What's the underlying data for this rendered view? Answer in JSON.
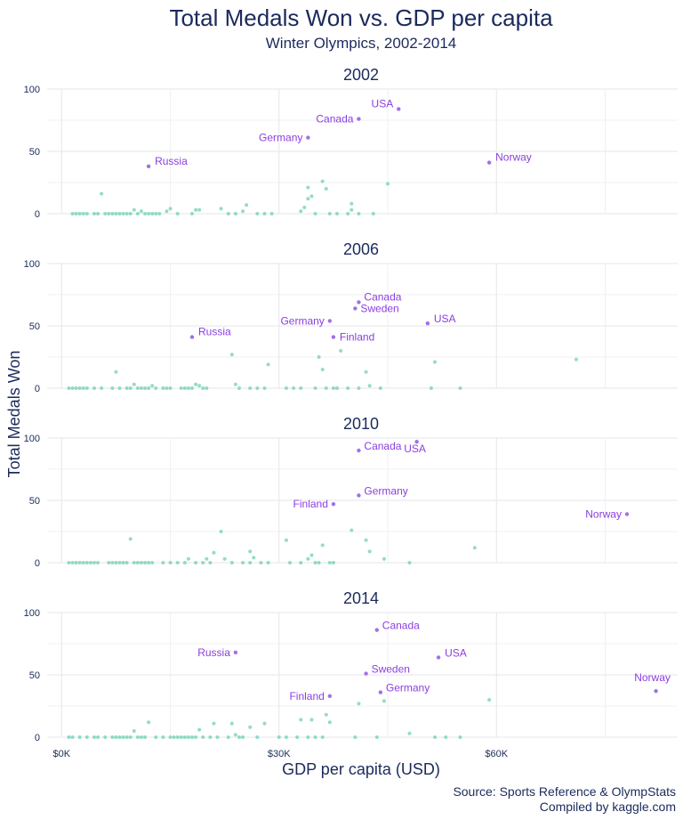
{
  "colors": {
    "title": "#1b2a5c",
    "text": "#1b2a5c",
    "label": "#8a3ee0",
    "highlight_point": "#a070e8",
    "point": "#6fd0b4",
    "grid": "#e6e6ec"
  },
  "chart_data": {
    "type": "scatter",
    "title": "Total Medals Won vs. GDP per capita",
    "subtitle": "Winter Olympics, 2002-2014",
    "xlabel": "GDP per capita (USD)",
    "ylabel": "Total Medals Won",
    "xlim": [
      -2000,
      85000
    ],
    "ylim": [
      0,
      100
    ],
    "x_ticks": [
      0,
      30000,
      60000
    ],
    "x_tick_labels": [
      "$0K",
      "$30K",
      "$60K"
    ],
    "y_ticks": [
      0,
      50,
      100
    ],
    "y_tick_labels": [
      "0",
      "50",
      "100"
    ],
    "grid": true,
    "caption_lines": [
      "Source: Sports Reference & OlympStats",
      "Compiled by kaggle.com"
    ],
    "facets": [
      {
        "label": "2002",
        "highlights": [
          {
            "country": "Russia",
            "x": 12000,
            "y": 38
          },
          {
            "country": "Germany",
            "x": 34000,
            "y": 61
          },
          {
            "country": "Canada",
            "x": 41000,
            "y": 76
          },
          {
            "country": "USA",
            "x": 46500,
            "y": 84
          },
          {
            "country": "Norway",
            "x": 59000,
            "y": 41
          }
        ],
        "points": [
          [
            1500,
            0
          ],
          [
            2000,
            0
          ],
          [
            2500,
            0
          ],
          [
            3000,
            0
          ],
          [
            3500,
            0
          ],
          [
            4500,
            0
          ],
          [
            5000,
            0
          ],
          [
            5500,
            16
          ],
          [
            6000,
            0
          ],
          [
            6500,
            0
          ],
          [
            7000,
            0
          ],
          [
            7500,
            0
          ],
          [
            8000,
            0
          ],
          [
            8500,
            0
          ],
          [
            9000,
            0
          ],
          [
            9500,
            0
          ],
          [
            10000,
            3
          ],
          [
            10500,
            0
          ],
          [
            11000,
            2
          ],
          [
            11500,
            0
          ],
          [
            12000,
            0
          ],
          [
            12500,
            0
          ],
          [
            13000,
            0
          ],
          [
            13500,
            0
          ],
          [
            14500,
            2
          ],
          [
            15000,
            4
          ],
          [
            16000,
            0
          ],
          [
            18000,
            0
          ],
          [
            18500,
            3
          ],
          [
            19000,
            3
          ],
          [
            22000,
            4
          ],
          [
            23000,
            0
          ],
          [
            24000,
            0
          ],
          [
            25000,
            2
          ],
          [
            25500,
            7
          ],
          [
            27000,
            0
          ],
          [
            28000,
            0
          ],
          [
            29000,
            0
          ],
          [
            33000,
            2
          ],
          [
            33500,
            5
          ],
          [
            34000,
            21
          ],
          [
            34000,
            12
          ],
          [
            34500,
            14
          ],
          [
            35000,
            0
          ],
          [
            36000,
            26
          ],
          [
            36500,
            20
          ],
          [
            37000,
            0
          ],
          [
            38000,
            0
          ],
          [
            39500,
            0
          ],
          [
            40000,
            8
          ],
          [
            40000,
            3
          ],
          [
            41000,
            0
          ],
          [
            43000,
            0
          ],
          [
            45000,
            24
          ]
        ]
      },
      {
        "label": "2006",
        "highlights": [
          {
            "country": "Russia",
            "x": 18000,
            "y": 41
          },
          {
            "country": "Germany",
            "x": 37000,
            "y": 54
          },
          {
            "country": "Finland",
            "x": 37500,
            "y": 41
          },
          {
            "country": "Canada",
            "x": 41000,
            "y": 69
          },
          {
            "country": "Sweden",
            "x": 40500,
            "y": 64
          },
          {
            "country": "USA",
            "x": 50500,
            "y": 52
          }
        ],
        "points": [
          [
            1000,
            0
          ],
          [
            1500,
            0
          ],
          [
            2000,
            0
          ],
          [
            2500,
            0
          ],
          [
            3000,
            0
          ],
          [
            3500,
            0
          ],
          [
            4500,
            0
          ],
          [
            5500,
            0
          ],
          [
            7000,
            0
          ],
          [
            7500,
            13
          ],
          [
            8000,
            0
          ],
          [
            9000,
            0
          ],
          [
            9500,
            0
          ],
          [
            10000,
            3
          ],
          [
            10500,
            0
          ],
          [
            11000,
            0
          ],
          [
            11500,
            0
          ],
          [
            12000,
            0
          ],
          [
            12500,
            2
          ],
          [
            13000,
            0
          ],
          [
            14000,
            0
          ],
          [
            14500,
            0
          ],
          [
            15000,
            0
          ],
          [
            16500,
            0
          ],
          [
            17000,
            0
          ],
          [
            17500,
            0
          ],
          [
            18000,
            0
          ],
          [
            18500,
            3
          ],
          [
            19000,
            2
          ],
          [
            19500,
            0
          ],
          [
            20000,
            0
          ],
          [
            23500,
            27
          ],
          [
            24000,
            3
          ],
          [
            24500,
            0
          ],
          [
            26000,
            0
          ],
          [
            27000,
            0
          ],
          [
            28000,
            0
          ],
          [
            28500,
            19
          ],
          [
            31000,
            0
          ],
          [
            32000,
            0
          ],
          [
            33000,
            0
          ],
          [
            35000,
            0
          ],
          [
            35500,
            25
          ],
          [
            36000,
            15
          ],
          [
            36500,
            0
          ],
          [
            37500,
            0
          ],
          [
            38000,
            0
          ],
          [
            38500,
            30
          ],
          [
            39500,
            0
          ],
          [
            41000,
            0
          ],
          [
            42000,
            13
          ],
          [
            42500,
            2
          ],
          [
            44000,
            0
          ],
          [
            51000,
            0
          ],
          [
            51500,
            21
          ],
          [
            55000,
            0
          ],
          [
            71000,
            23
          ]
        ]
      },
      {
        "label": "2010",
        "highlights": [
          {
            "country": "Finland",
            "x": 37500,
            "y": 47
          },
          {
            "country": "Germany",
            "x": 41000,
            "y": 54
          },
          {
            "country": "Canada",
            "x": 41000,
            "y": 90
          },
          {
            "country": "USA",
            "x": 49000,
            "y": 97
          },
          {
            "country": "Norway",
            "x": 78000,
            "y": 39
          }
        ],
        "points": [
          [
            1000,
            0
          ],
          [
            1500,
            0
          ],
          [
            2000,
            0
          ],
          [
            2500,
            0
          ],
          [
            3000,
            0
          ],
          [
            3500,
            0
          ],
          [
            4000,
            0
          ],
          [
            4500,
            0
          ],
          [
            5000,
            0
          ],
          [
            6500,
            0
          ],
          [
            7000,
            0
          ],
          [
            7500,
            0
          ],
          [
            8000,
            0
          ],
          [
            8500,
            0
          ],
          [
            9000,
            0
          ],
          [
            9500,
            19
          ],
          [
            10000,
            0
          ],
          [
            10500,
            0
          ],
          [
            11000,
            0
          ],
          [
            11500,
            0
          ],
          [
            12000,
            0
          ],
          [
            12500,
            0
          ],
          [
            14000,
            0
          ],
          [
            15000,
            0
          ],
          [
            16000,
            0
          ],
          [
            17000,
            0
          ],
          [
            17500,
            3
          ],
          [
            18500,
            0
          ],
          [
            19500,
            0
          ],
          [
            20000,
            3
          ],
          [
            20500,
            0
          ],
          [
            21000,
            8
          ],
          [
            22000,
            25
          ],
          [
            22500,
            3
          ],
          [
            23500,
            0
          ],
          [
            25000,
            0
          ],
          [
            26000,
            0
          ],
          [
            26000,
            9
          ],
          [
            26500,
            4
          ],
          [
            27500,
            0
          ],
          [
            28500,
            0
          ],
          [
            31000,
            18
          ],
          [
            31500,
            0
          ],
          [
            33000,
            0
          ],
          [
            34000,
            3
          ],
          [
            34500,
            6
          ],
          [
            35000,
            0
          ],
          [
            35500,
            0
          ],
          [
            36000,
            14
          ],
          [
            37000,
            0
          ],
          [
            37500,
            0
          ],
          [
            40000,
            26
          ],
          [
            42000,
            18
          ],
          [
            42500,
            9
          ],
          [
            44500,
            3
          ],
          [
            48000,
            0
          ],
          [
            57000,
            12
          ]
        ]
      },
      {
        "label": "2014",
        "highlights": [
          {
            "country": "Russia",
            "x": 24000,
            "y": 68
          },
          {
            "country": "Finland",
            "x": 37000,
            "y": 33
          },
          {
            "country": "Sweden",
            "x": 42000,
            "y": 51
          },
          {
            "country": "Germany",
            "x": 44000,
            "y": 36
          },
          {
            "country": "Canada",
            "x": 43500,
            "y": 86
          },
          {
            "country": "USA",
            "x": 52000,
            "y": 64
          },
          {
            "country": "Norway",
            "x": 82000,
            "y": 37
          }
        ],
        "points": [
          [
            1000,
            0
          ],
          [
            1500,
            0
          ],
          [
            2500,
            0
          ],
          [
            3500,
            0
          ],
          [
            4500,
            0
          ],
          [
            5000,
            0
          ],
          [
            6000,
            0
          ],
          [
            7000,
            0
          ],
          [
            7500,
            0
          ],
          [
            8000,
            0
          ],
          [
            8500,
            0
          ],
          [
            9000,
            0
          ],
          [
            9500,
            0
          ],
          [
            10000,
            5
          ],
          [
            10500,
            0
          ],
          [
            11000,
            0
          ],
          [
            11500,
            0
          ],
          [
            12000,
            12
          ],
          [
            13000,
            0
          ],
          [
            14000,
            0
          ],
          [
            15000,
            0
          ],
          [
            15500,
            0
          ],
          [
            16000,
            0
          ],
          [
            16500,
            0
          ],
          [
            17000,
            0
          ],
          [
            17500,
            0
          ],
          [
            18000,
            0
          ],
          [
            18500,
            0
          ],
          [
            19000,
            6
          ],
          [
            19500,
            0
          ],
          [
            20500,
            0
          ],
          [
            21000,
            11
          ],
          [
            21500,
            0
          ],
          [
            23000,
            0
          ],
          [
            23500,
            11
          ],
          [
            24000,
            2
          ],
          [
            24500,
            0
          ],
          [
            25000,
            0
          ],
          [
            26000,
            8
          ],
          [
            27000,
            0
          ],
          [
            28000,
            11
          ],
          [
            30000,
            0
          ],
          [
            31000,
            0
          ],
          [
            32500,
            0
          ],
          [
            33000,
            14
          ],
          [
            34000,
            0
          ],
          [
            34500,
            14
          ],
          [
            35000,
            0
          ],
          [
            36000,
            0
          ],
          [
            36500,
            18
          ],
          [
            37000,
            12
          ],
          [
            40500,
            0
          ],
          [
            41000,
            27
          ],
          [
            43500,
            0
          ],
          [
            44500,
            29
          ],
          [
            48000,
            3
          ],
          [
            51500,
            0
          ],
          [
            53000,
            0
          ],
          [
            55000,
            0
          ],
          [
            59000,
            30
          ]
        ]
      }
    ]
  }
}
